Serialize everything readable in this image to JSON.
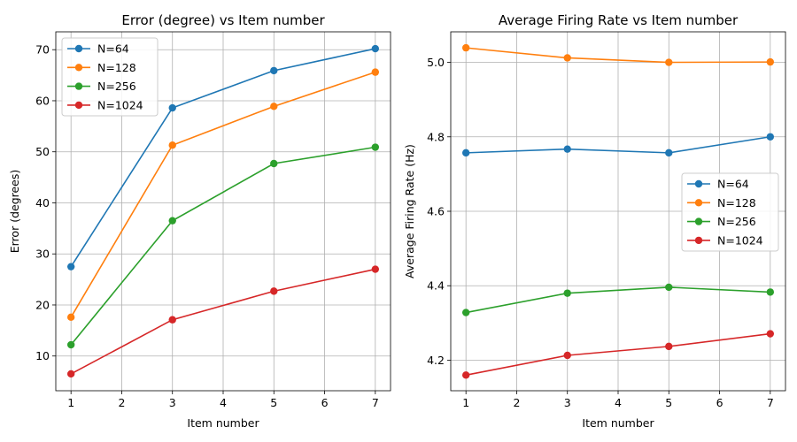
{
  "chart_data": [
    {
      "type": "line",
      "title": "Error (degree) vs Item number",
      "xlabel": "Item number",
      "ylabel": "Error (degrees)",
      "x": [
        1,
        3,
        5,
        7
      ],
      "xlim": [
        0.7,
        7.3
      ],
      "ylim": [
        3.2,
        73.5
      ],
      "xticks": [
        1,
        2,
        3,
        4,
        5,
        6,
        7
      ],
      "yticks": [
        10,
        20,
        30,
        40,
        50,
        60,
        70
      ],
      "grid": true,
      "legend_position": "upper-left",
      "series": [
        {
          "name": "N=64",
          "color": "#1f77b4",
          "values": [
            27.5,
            58.6,
            65.9,
            70.2
          ]
        },
        {
          "name": "N=128",
          "color": "#ff7f0e",
          "values": [
            17.6,
            51.3,
            58.9,
            65.6
          ]
        },
        {
          "name": "N=256",
          "color": "#2ca02c",
          "values": [
            12.2,
            36.5,
            47.7,
            50.9
          ]
        },
        {
          "name": "N=1024",
          "color": "#d62728",
          "values": [
            6.5,
            17.1,
            22.7,
            27.0
          ]
        }
      ]
    },
    {
      "type": "line",
      "title": "Average Firing Rate vs Item number",
      "xlabel": "Item number",
      "ylabel": "Average Firing Rate (Hz)",
      "x": [
        1,
        3,
        5,
        7
      ],
      "xlim": [
        0.7,
        7.3
      ],
      "ylim": [
        4.118,
        5.082
      ],
      "xticks": [
        1,
        2,
        3,
        4,
        5,
        6,
        7
      ],
      "yticks": [
        4.2,
        4.4,
        4.6,
        4.8,
        5.0
      ],
      "yticklabels": [
        "4.2",
        "4.4",
        "4.6",
        "4.8",
        "5.0"
      ],
      "grid": true,
      "legend_position": "center-right",
      "series": [
        {
          "name": "N=64",
          "color": "#1f77b4",
          "values": [
            4.757,
            4.767,
            4.757,
            4.8
          ]
        },
        {
          "name": "N=128",
          "color": "#ff7f0e",
          "values": [
            5.039,
            5.012,
            5.0,
            5.001
          ]
        },
        {
          "name": "N=256",
          "color": "#2ca02c",
          "values": [
            4.328,
            4.38,
            4.396,
            4.383
          ]
        },
        {
          "name": "N=1024",
          "color": "#d62728",
          "values": [
            4.16,
            4.213,
            4.237,
            4.271
          ]
        }
      ]
    }
  ]
}
